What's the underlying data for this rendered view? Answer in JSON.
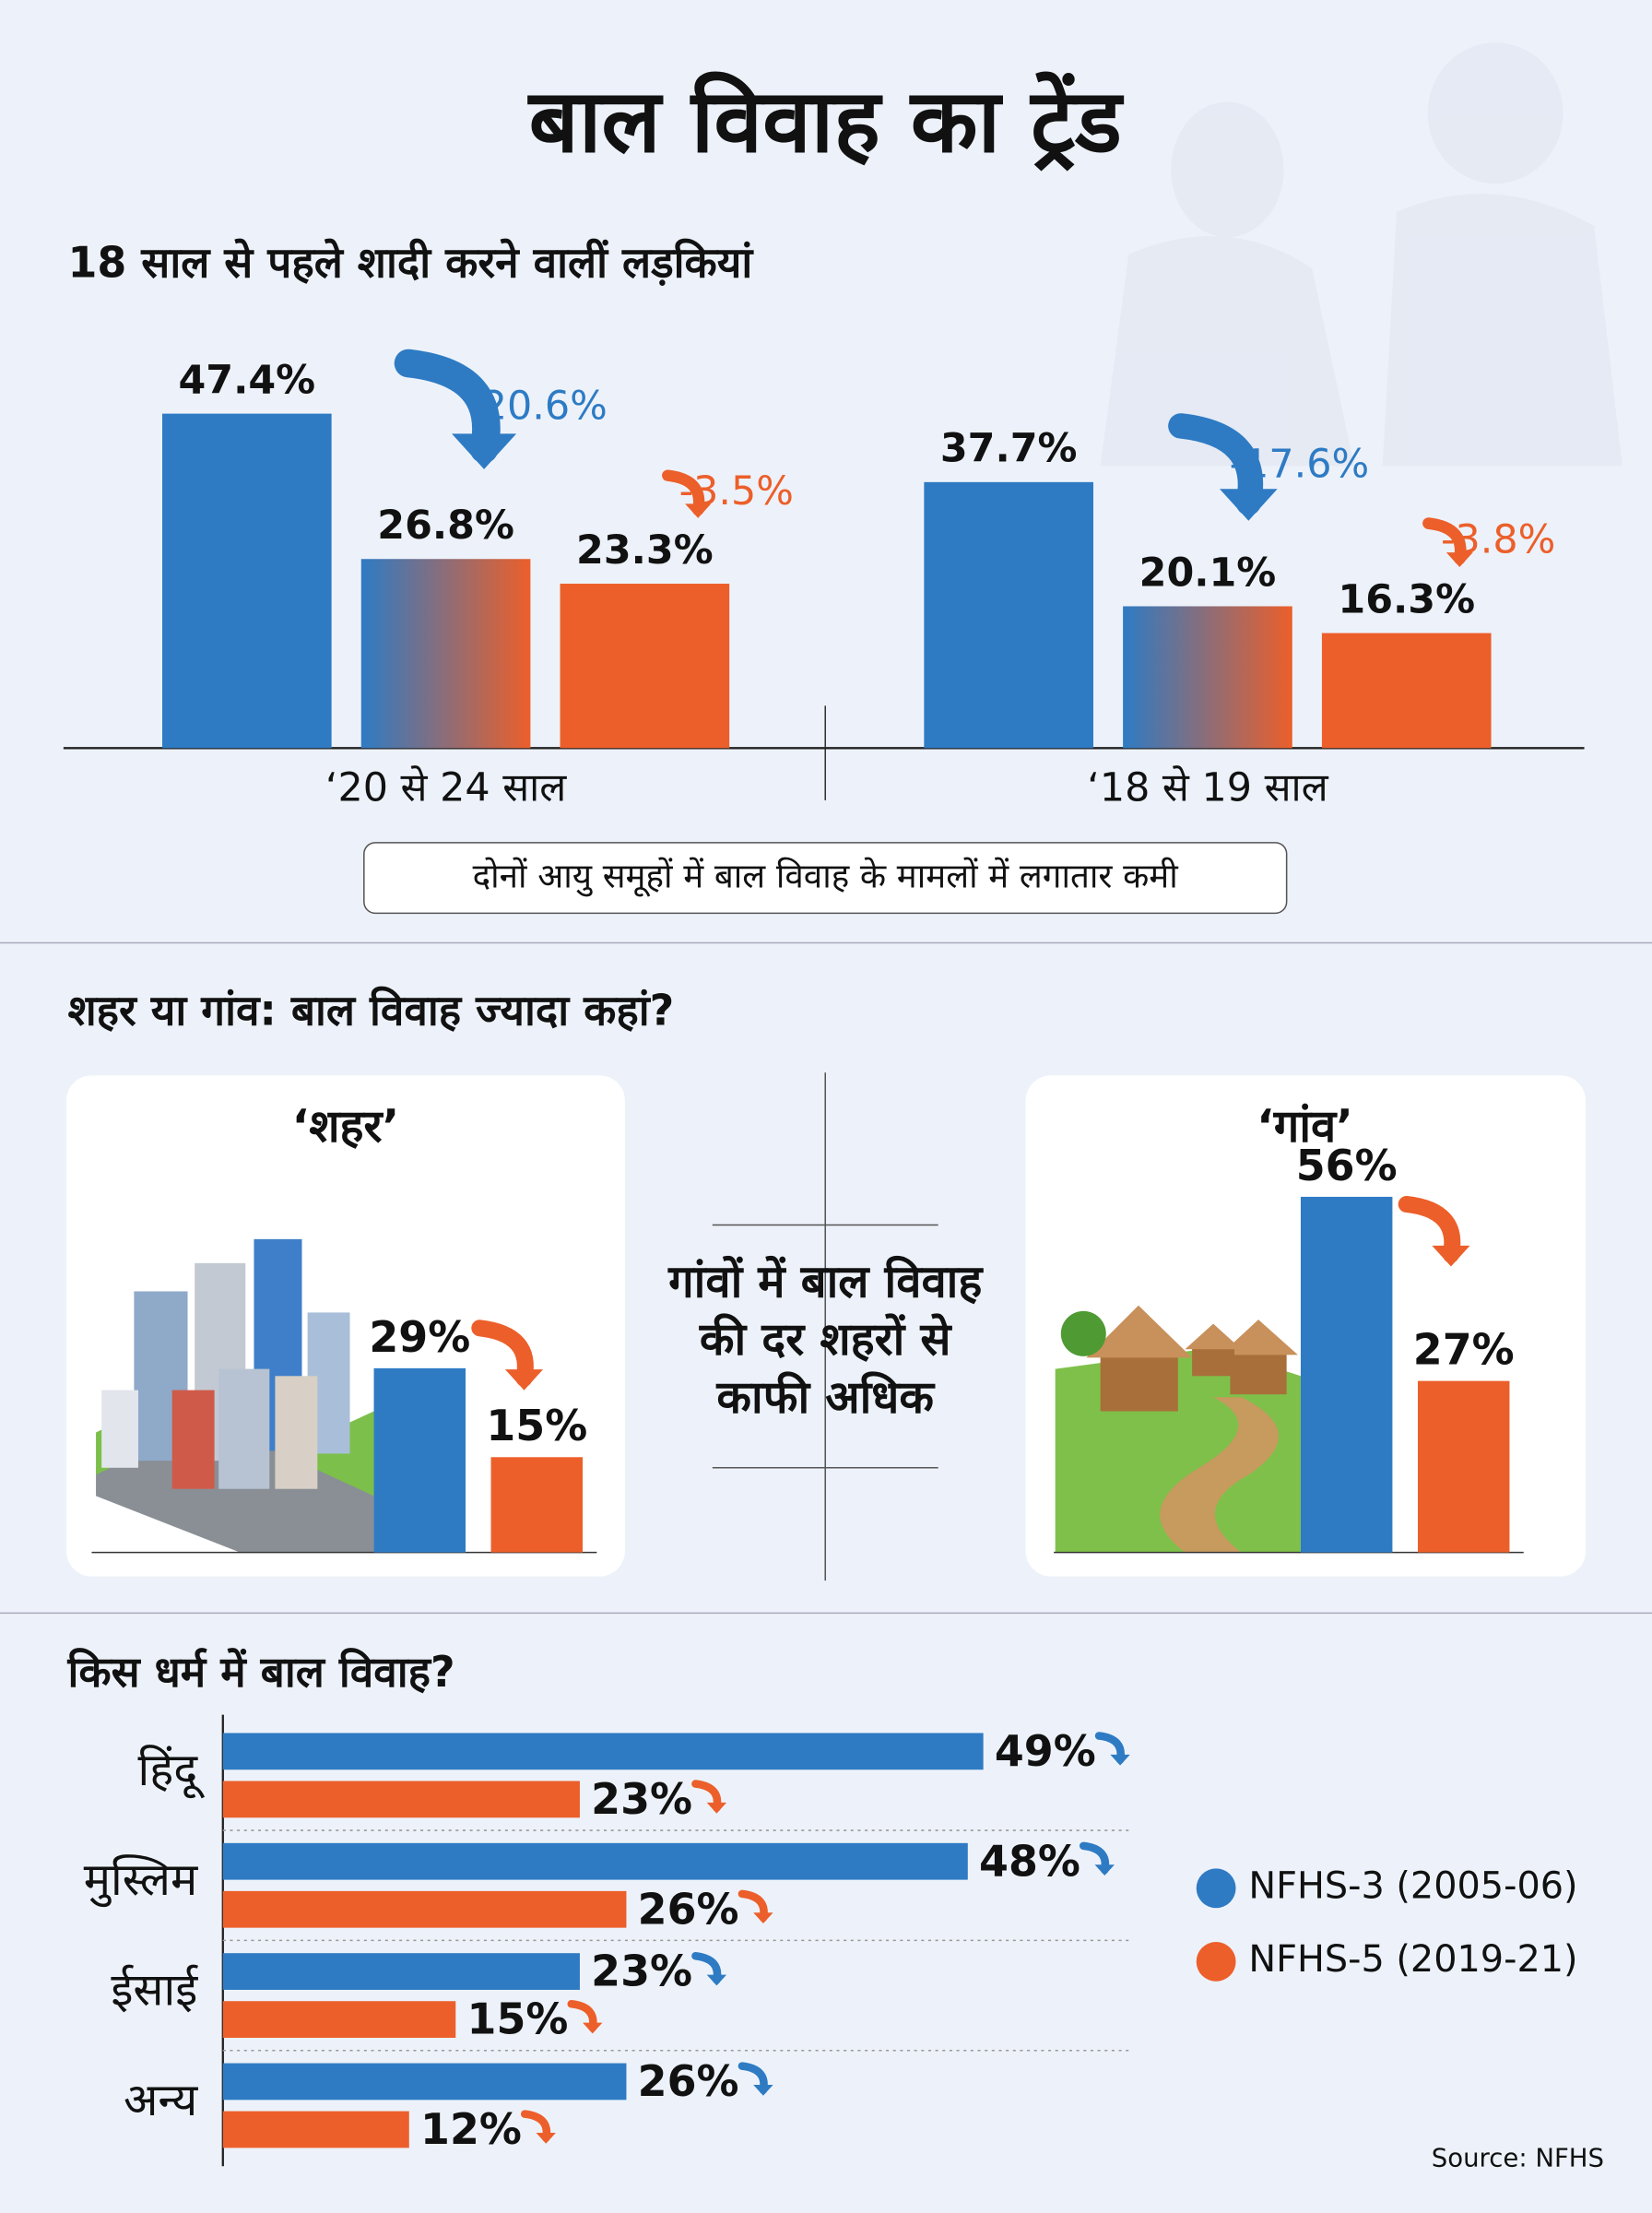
{
  "title": "बाल विवाह का ट्रेंड",
  "source": "Source: NFHS",
  "chart_data": [
    {
      "type": "bar",
      "title": "18 साल से पहले शादी करने वालीं लड़कियां",
      "categories": [
        "‘20 से 24 साल",
        "‘18 से 19 साल"
      ],
      "series": [
        {
          "color": "#2e7bc4",
          "values": [
            47.4,
            37.7
          ],
          "value_labels": [
            "47.4%",
            "37.7%"
          ]
        },
        {
          "color": [
            "#2e7bc4",
            "#ec5f2a"
          ],
          "values": [
            26.8,
            20.1
          ],
          "value_labels": [
            "26.8%",
            "20.1%"
          ]
        },
        {
          "color": "#ec5f2a",
          "values": [
            23.3,
            16.3
          ],
          "value_labels": [
            "23.3%",
            "16.3%"
          ]
        }
      ],
      "changes": [
        [
          -20.6,
          -3.5
        ],
        [
          -17.6,
          -3.8
        ]
      ],
      "change_labels": [
        [
          "-20.6%",
          "-3.5%"
        ],
        [
          "-17.6%",
          "-3.8%"
        ]
      ],
      "ylim": [
        0,
        60
      ],
      "note": "दोनों आयु समूहों में बाल विवाह के मामलों में लगातार कमी"
    },
    {
      "type": "bar",
      "title": "शहर या गांव: बाल विवाह ज्यादा कहां?",
      "categories": [
        "‘शहर’",
        "‘गांव’"
      ],
      "series": [
        {
          "color": "#2e7bc4",
          "values": [
            29,
            56
          ],
          "value_labels": [
            "29%",
            "56%"
          ]
        },
        {
          "color": "#ec5f2a",
          "values": [
            15,
            27
          ],
          "value_labels": [
            "15%",
            "27%"
          ]
        }
      ],
      "ylim": [
        0,
        70
      ],
      "note": [
        "गांवों में बाल विवाह",
        "की दर शहरों से",
        "काफी अधिक"
      ]
    },
    {
      "type": "hbar",
      "title": "किस धर्म में बाल विवाह?",
      "categories": [
        "हिंदू",
        "मुस्लिम",
        "ईसाई",
        "अन्य"
      ],
      "series": [
        {
          "name": "NFHS-3 (2005-06)",
          "color": "#2e7bc4",
          "values": [
            49,
            48,
            23,
            26
          ],
          "value_labels": [
            "49%",
            "48%",
            "23%",
            "26%"
          ]
        },
        {
          "name": "NFHS-5 (2019-21)",
          "color": "#ec5f2a",
          "values": [
            23,
            26,
            15,
            12
          ],
          "value_labels": [
            "23%",
            "26%",
            "15%",
            "12%"
          ]
        }
      ],
      "xlim": [
        0,
        60
      ]
    }
  ]
}
